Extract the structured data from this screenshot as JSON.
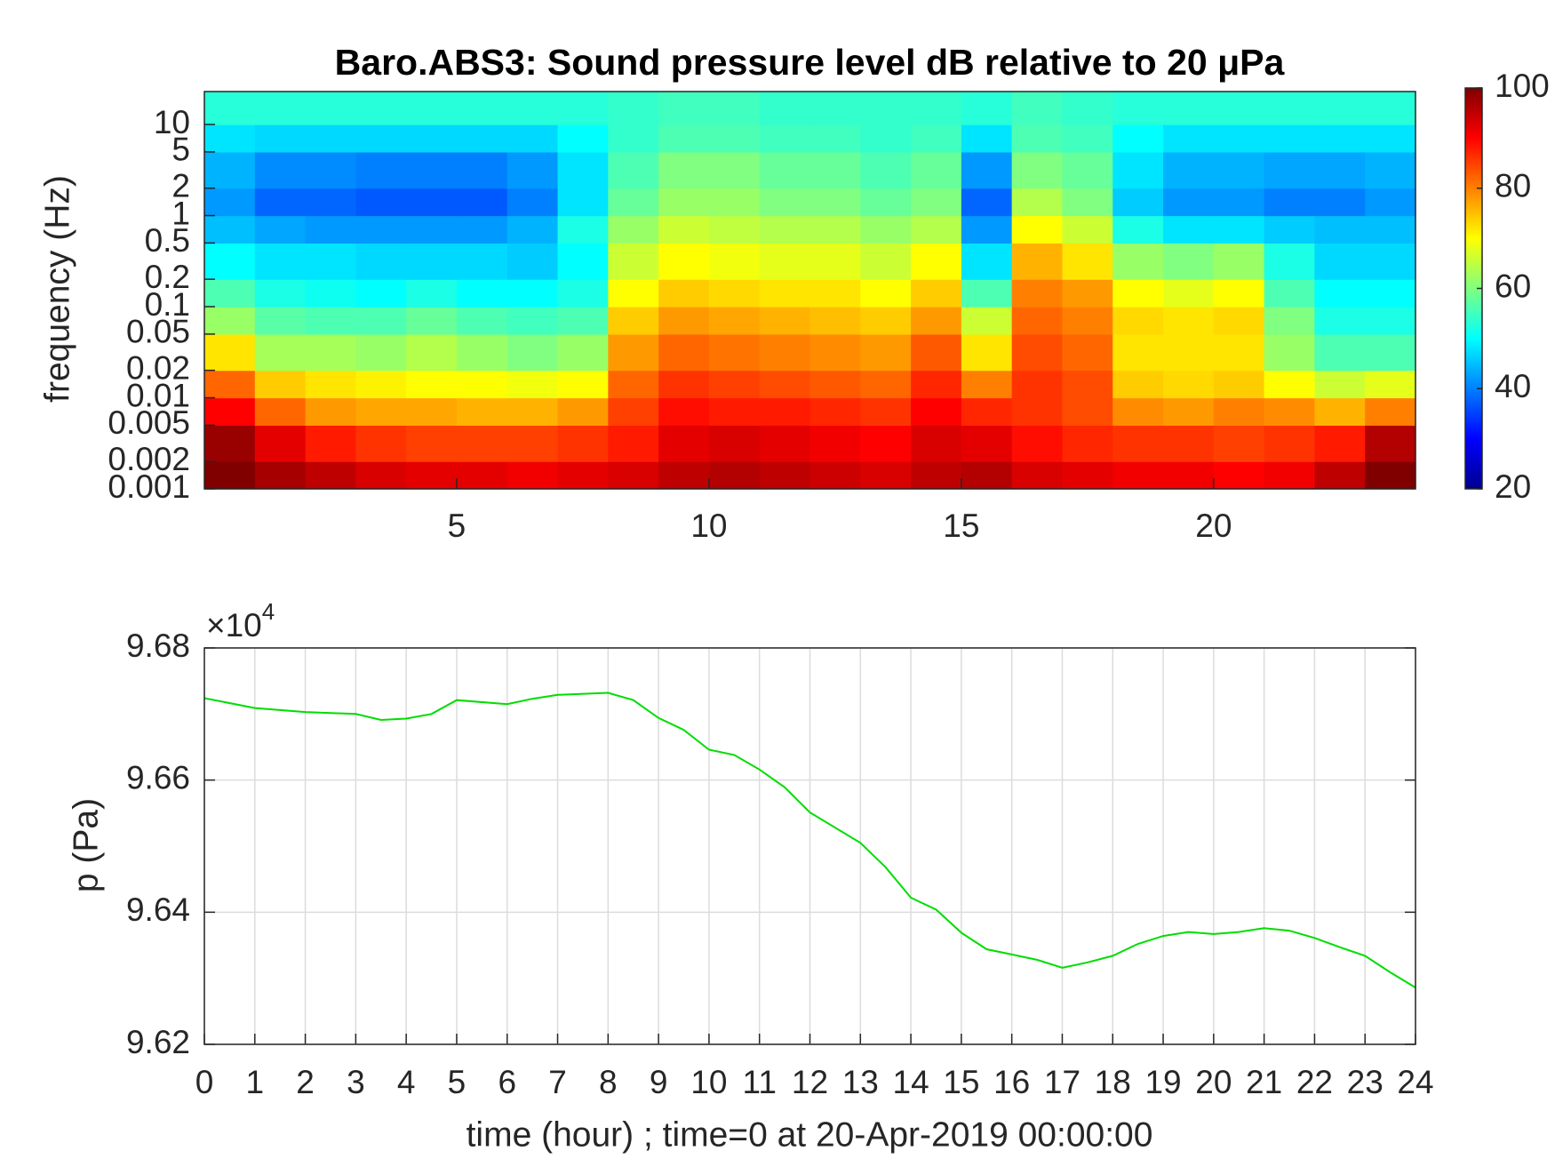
{
  "chart_data": [
    {
      "type": "heatmap",
      "title": "Baro.ABS3: Sound pressure level dB relative to 20 μPa",
      "ylabel": "frequency (Hz)",
      "colormap": "jet",
      "xbins": [
        0,
        1,
        2,
        3,
        4,
        5,
        6,
        7,
        8,
        9,
        10,
        11,
        12,
        13,
        14,
        15,
        16,
        17,
        18,
        19,
        20,
        21,
        22,
        23,
        24
      ],
      "ybins": [
        0.001,
        0.002,
        0.005,
        0.01,
        0.02,
        0.05,
        0.1,
        0.2,
        0.5,
        1,
        2,
        5,
        10,
        23
      ],
      "values": [
        [
          100,
          97,
          95,
          93,
          92,
          92,
          91,
          92,
          93,
          95,
          96,
          95,
          94,
          93,
          95,
          96,
          93,
          92,
          91,
          91,
          90,
          91,
          95,
          100
        ],
        [
          98,
          92,
          88,
          86,
          85,
          85,
          85,
          86,
          88,
          92,
          93,
          92,
          91,
          90,
          93,
          92,
          89,
          87,
          86,
          86,
          85,
          86,
          88,
          96
        ],
        [
          90,
          82,
          78,
          77,
          77,
          76,
          76,
          78,
          85,
          89,
          88,
          88,
          87,
          86,
          90,
          87,
          86,
          84,
          79,
          78,
          80,
          79,
          76,
          80
        ],
        [
          82,
          74,
          72,
          71,
          70,
          70,
          69,
          70,
          82,
          86,
          85,
          84,
          83,
          82,
          87,
          80,
          86,
          84,
          74,
          73,
          74,
          70,
          66,
          68
        ],
        [
          72,
          63,
          63,
          62,
          64,
          62,
          60,
          62,
          78,
          82,
          81,
          80,
          79,
          78,
          83,
          72,
          84,
          82,
          72,
          72,
          72,
          62,
          56,
          56
        ],
        [
          62,
          57,
          56,
          56,
          58,
          56,
          55,
          56,
          74,
          78,
          77,
          76,
          75,
          74,
          78,
          66,
          82,
          80,
          73,
          72,
          73,
          60,
          52,
          52
        ],
        [
          56,
          52,
          51,
          50,
          52,
          50,
          50,
          52,
          70,
          74,
          73,
          72,
          72,
          70,
          74,
          56,
          80,
          78,
          70,
          68,
          70,
          56,
          50,
          50
        ],
        [
          50,
          48,
          48,
          47,
          47,
          47,
          46,
          50,
          66,
          70,
          69,
          68,
          68,
          66,
          70,
          48,
          76,
          72,
          62,
          60,
          62,
          52,
          47,
          47
        ],
        [
          45,
          43,
          42,
          42,
          42,
          42,
          44,
          52,
          62,
          66,
          65,
          64,
          64,
          62,
          64,
          42,
          70,
          66,
          52,
          48,
          48,
          46,
          45,
          45
        ],
        [
          42,
          38,
          38,
          37,
          37,
          37,
          40,
          48,
          58,
          62,
          62,
          60,
          60,
          58,
          60,
          38,
          64,
          60,
          46,
          42,
          42,
          40,
          40,
          42
        ],
        [
          44,
          41,
          41,
          40,
          40,
          40,
          42,
          48,
          56,
          60,
          60,
          58,
          58,
          56,
          58,
          42,
          60,
          58,
          48,
          44,
          44,
          43,
          43,
          44
        ],
        [
          48,
          47,
          47,
          47,
          47,
          47,
          47,
          50,
          54,
          56,
          56,
          55,
          55,
          54,
          55,
          48,
          56,
          55,
          50,
          48,
          48,
          48,
          48,
          48
        ],
        [
          53,
          53,
          53,
          53,
          53,
          53,
          53,
          53,
          54,
          55,
          55,
          54,
          54,
          54,
          54,
          53,
          55,
          54,
          53,
          53,
          53,
          53,
          53,
          53
        ]
      ],
      "xlim": [
        0,
        24
      ],
      "xticks": [
        5,
        10,
        15,
        20
      ],
      "ylim": [
        0.001,
        23
      ],
      "log_y": true,
      "yticks": [
        0.001,
        0.002,
        0.005,
        0.01,
        0.02,
        0.05,
        0.1,
        0.2,
        0.5,
        1,
        2,
        5,
        10
      ],
      "clim": [
        20,
        100
      ],
      "cticks": [
        20,
        40,
        60,
        80,
        100
      ]
    },
    {
      "type": "line",
      "xlabel": "time (hour) ; time=0 at 20-Apr-2019 00:00:00",
      "ylabel": "p (Pa)",
      "y_multiplier": "×10",
      "y_exponent": "4",
      "color": "#00dd00",
      "grid": true,
      "x": [
        0,
        1,
        2,
        3,
        3.5,
        4,
        4.5,
        5,
        6,
        6.5,
        7,
        8,
        8.5,
        9,
        9.5,
        10,
        10.5,
        11,
        11.5,
        12,
        13,
        13.5,
        14,
        14.5,
        15,
        15.5,
        16,
        16.5,
        17,
        17.5,
        18,
        18.5,
        19,
        19.5,
        20,
        20.5,
        21,
        21.5,
        22,
        22.5,
        23,
        23.5,
        24
      ],
      "values": [
        96724,
        96709,
        96703,
        96700,
        96691,
        96693,
        96700,
        96721,
        96715,
        96723,
        96729,
        96732,
        96721,
        96694,
        96676,
        96646,
        96638,
        96616,
        96589,
        96551,
        96505,
        96468,
        96422,
        96404,
        96369,
        96344,
        96336,
        96328,
        96316,
        96324,
        96334,
        96352,
        96364,
        96370,
        96367,
        96370,
        96376,
        96372,
        96361,
        96347,
        96334,
        96309,
        96286
      ],
      "xlim": [
        0,
        24
      ],
      "xticks": [
        0,
        1,
        2,
        3,
        4,
        5,
        6,
        7,
        8,
        9,
        10,
        11,
        12,
        13,
        14,
        15,
        16,
        17,
        18,
        19,
        20,
        21,
        22,
        23,
        24
      ],
      "ylim": [
        96200,
        96800
      ],
      "yticks": [
        {
          "value": 96200,
          "label": "9.62"
        },
        {
          "value": 96400,
          "label": "9.64"
        },
        {
          "value": 96600,
          "label": "9.66"
        },
        {
          "value": 96800,
          "label": "9.68"
        }
      ]
    }
  ]
}
